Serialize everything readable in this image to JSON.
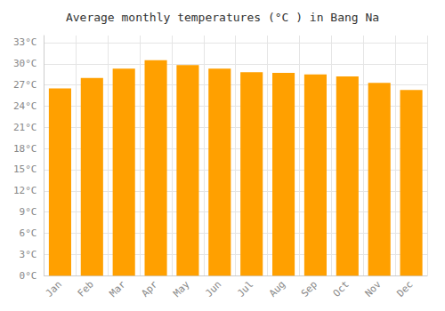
{
  "chart_data": {
    "type": "bar",
    "title": "Average monthly temperatures (°C ) in Bang Na",
    "categories": [
      "Jan",
      "Feb",
      "Mar",
      "Apr",
      "May",
      "Jun",
      "Jul",
      "Aug",
      "Sep",
      "Oct",
      "Nov",
      "Dec"
    ],
    "values": [
      26.5,
      28.0,
      29.3,
      30.5,
      29.8,
      29.3,
      28.8,
      28.7,
      28.5,
      28.2,
      27.3,
      26.3
    ],
    "color": "#FFA000",
    "ylim": [
      0,
      34
    ],
    "yticks": [
      {
        "value": 0,
        "label": "0°C"
      },
      {
        "value": 3,
        "label": "3°C"
      },
      {
        "value": 6,
        "label": "6°C"
      },
      {
        "value": 9,
        "label": "9°C"
      },
      {
        "value": 12,
        "label": "12°C"
      },
      {
        "value": 15,
        "label": "15°C"
      },
      {
        "value": 18,
        "label": "18°C"
      },
      {
        "value": 21,
        "label": "21°C"
      },
      {
        "value": 24,
        "label": "24°C"
      },
      {
        "value": 27,
        "label": "27°C"
      },
      {
        "value": 30,
        "label": "30°C"
      },
      {
        "value": 33,
        "label": "33°C"
      }
    ],
    "grid": true
  }
}
